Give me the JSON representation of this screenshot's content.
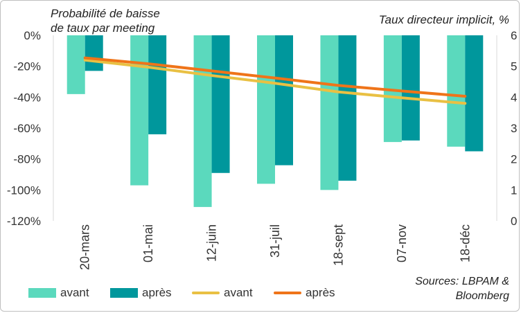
{
  "left_axis_title_lines": [
    "Probabilité de baisse",
    "de taux par meeting"
  ],
  "right_axis_title": "Taux directeur implicit, %",
  "source_lines": [
    "Sources: LBPAM &",
    "Bloomberg"
  ],
  "colors": {
    "bar_avant": "#5bd9bd",
    "bar_apres": "#00979c",
    "line_avant": "#e9c043",
    "line_apres": "#ef7419",
    "axis": "#d9d9d9",
    "text": "#333333"
  },
  "chart_data": {
    "type": "bar",
    "categories": [
      "20-mars",
      "01-mai",
      "12-juin",
      "31-juil",
      "18-sept",
      "07-nov",
      "18-déc"
    ],
    "y_left": {
      "ticks": [
        "0%",
        "-20%",
        "-40%",
        "-60%",
        "-80%",
        "-100%",
        "-120%"
      ],
      "min": -120,
      "max": 0
    },
    "y_right": {
      "ticks": [
        "6",
        "5",
        "4",
        "3",
        "2",
        "1",
        "0"
      ],
      "min": 0,
      "max": 6
    },
    "bar_series": [
      {
        "name": "avant",
        "values": [
          -38,
          -97,
          -111,
          -96,
          -100,
          -69,
          -72
        ]
      },
      {
        "name": "après",
        "values": [
          -23,
          -64,
          -89,
          -84,
          -94,
          -68,
          -75
        ]
      }
    ],
    "line_series": [
      {
        "name": "avant",
        "values": [
          5.2,
          4.97,
          4.7,
          4.45,
          4.17,
          3.98,
          3.8
        ]
      },
      {
        "name": "après",
        "values": [
          5.27,
          5.08,
          4.85,
          4.62,
          4.38,
          4.2,
          4.03
        ]
      }
    ],
    "legend": [
      "avant",
      "après",
      "avant",
      "après"
    ],
    "legend_position": "bottom"
  }
}
